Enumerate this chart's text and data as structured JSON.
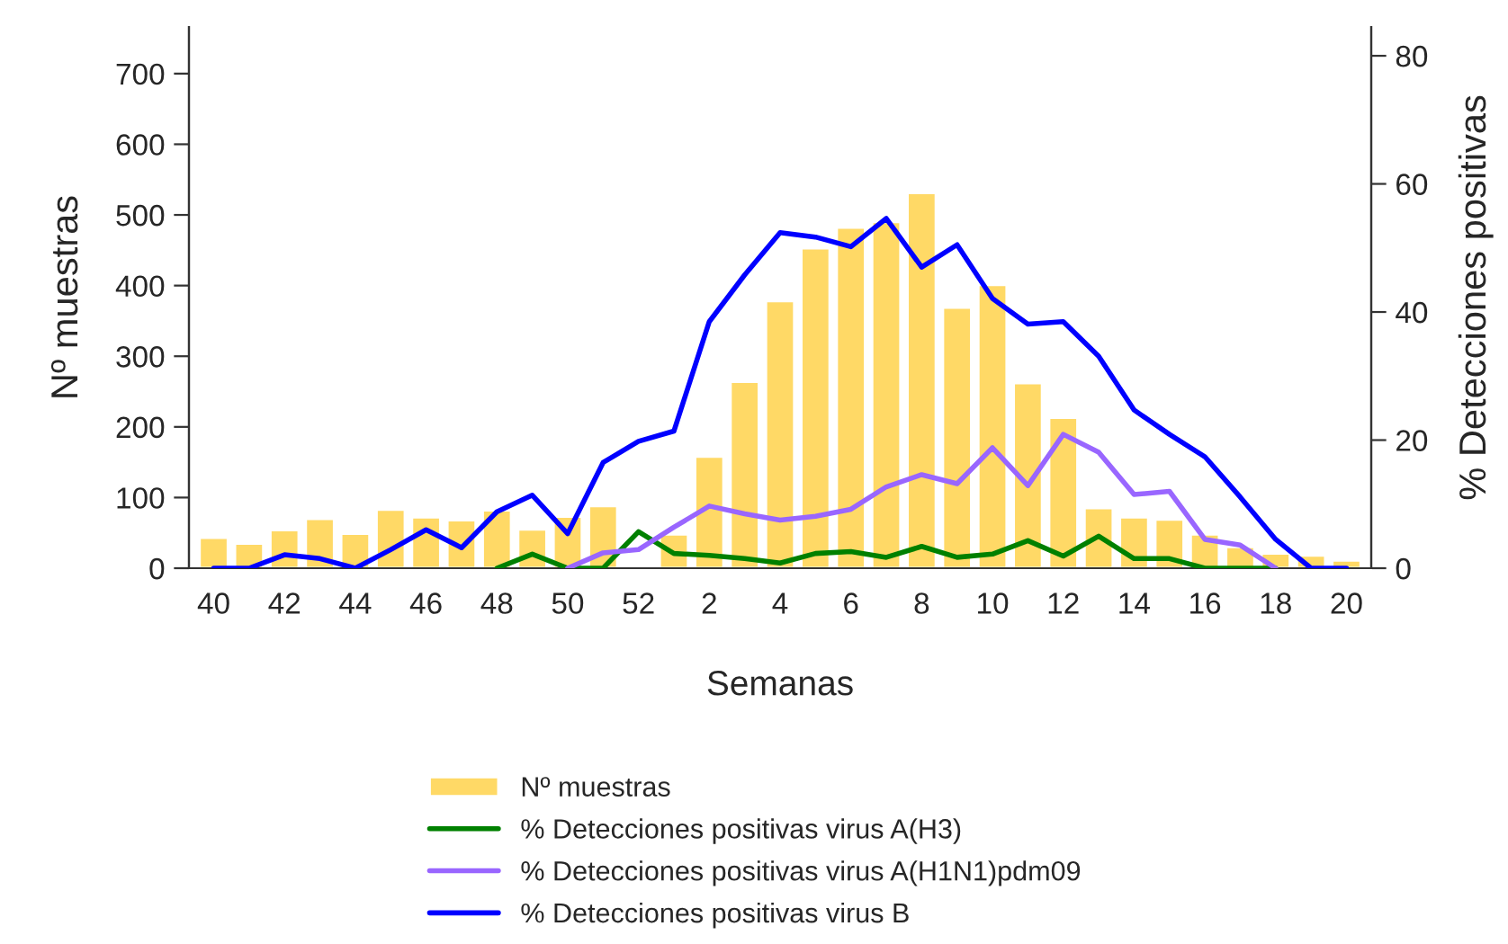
{
  "chart_data": {
    "type": "bar",
    "xlabel": "Semanas",
    "ylabel": "Nº muestras",
    "y2label": "% Detecciones positivas",
    "categories": [
      "40",
      null,
      "42",
      null,
      "44",
      null,
      "46",
      null,
      "48",
      null,
      "50",
      null,
      "52",
      null,
      "2",
      null,
      "4",
      null,
      "6",
      null,
      "8",
      null,
      "10",
      null,
      "12",
      null,
      "14",
      null,
      "16",
      null,
      "18",
      null,
      "20"
    ],
    "series": [
      {
        "name": "Nº muestras",
        "color": "#ffd966",
        "values": [
          43,
          35,
          54,
          70,
          49,
          83,
          72,
          68,
          82,
          55,
          73,
          88,
          null,
          48,
          158,
          264,
          378,
          453,
          482,
          490,
          531,
          369,
          401,
          262,
          213,
          85,
          72,
          69,
          48,
          30,
          21,
          18,
          11
        ]
      },
      {
        "name": "% Detecciones positivas virus A(H3)",
        "type": "line",
        "axis": "y2",
        "color": "#008000",
        "values": [
          null,
          null,
          null,
          null,
          null,
          null,
          null,
          null,
          0,
          2.2,
          0,
          0,
          5.7,
          2.3,
          2.0,
          1.5,
          0.8,
          2.3,
          2.6,
          1.7,
          3.4,
          1.7,
          2.2,
          4.3,
          1.9,
          5.0,
          1.5,
          1.5,
          0,
          0,
          0,
          null,
          null
        ]
      },
      {
        "name": "% Detecciones positivas virus A(H1N1)pdm09",
        "type": "line",
        "axis": "y2",
        "color": "#9966ff",
        "values": [
          null,
          null,
          null,
          null,
          null,
          null,
          null,
          null,
          null,
          null,
          0,
          2.4,
          2.9,
          6.4,
          9.7,
          8.5,
          7.5,
          8.1,
          9.2,
          12.7,
          14.6,
          13.2,
          18.8,
          12.9,
          20.9,
          18.1,
          11.5,
          12.0,
          4.5,
          3.6,
          0,
          null,
          null
        ]
      },
      {
        "name": "% Detecciones positivas virus B",
        "type": "line",
        "axis": "y2",
        "color": "#0000ff",
        "values": [
          0,
          0,
          2.1,
          1.5,
          0,
          2.9,
          6.0,
          3.2,
          8.8,
          11.4,
          5.4,
          16.5,
          19.8,
          21.4,
          38.5,
          45.8,
          52.4,
          51.7,
          50.2,
          54.6,
          47.0,
          50.5,
          42.1,
          38.1,
          38.5,
          33.1,
          24.7,
          20.9,
          17.4,
          11.1,
          4.5,
          0,
          0
        ]
      }
    ],
    "ylim": [
      0,
      766
    ],
    "yticks": [
      0,
      100,
      200,
      300,
      400,
      500,
      600,
      700
    ],
    "y2lim": [
      0,
      84.5
    ],
    "y2ticks": [
      0,
      20,
      40,
      60,
      80
    ],
    "grid": false,
    "legend": "bottom",
    "marker": "none",
    "line_style": "solid"
  }
}
